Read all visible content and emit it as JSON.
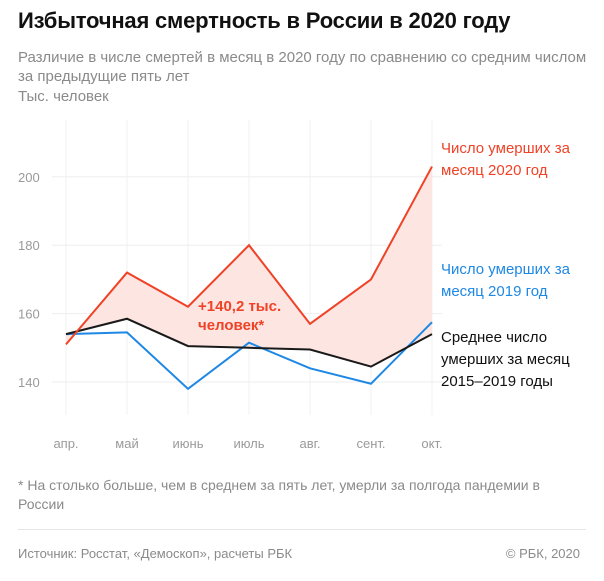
{
  "title": "Избыточная смертность в России в 2020 году",
  "subtitle": "Различие в числе смертей в месяц в 2020 году по сравнению со средним числом за предыдущие пять лет",
  "units": "Тыс. человек",
  "callout": "+140,2 тыс. человек*",
  "legend": {
    "y2020": "Число умерших за месяц 2020 год",
    "y2019": "Число умерших за месяц 2019 год",
    "avg": "Среднее число умерших за месяц 2015–2019 годы"
  },
  "footnote": "* На столько больше, чем в среднем за пять лет, умерли за полгода пандемии в России",
  "source": "Источник: Росстат, «Демоскоп», расчеты РБК",
  "copyright": "© РБК, 2020",
  "colors": {
    "y2020": "#ef4227",
    "y2019": "#1e88e5",
    "avg": "#1a1a1a",
    "fill": "#fde6e1"
  },
  "chart_data": {
    "type": "line",
    "categories": [
      "апр.",
      "май",
      "июнь",
      "июль",
      "авг.",
      "сент.",
      "окт."
    ],
    "series": [
      {
        "name": "Число умерших за месяц 2020 год",
        "values": [
          151,
          172,
          162,
          180,
          157,
          170,
          203
        ]
      },
      {
        "name": "Число умерших за месяц 2019 год",
        "values": [
          154,
          154.5,
          138,
          151.5,
          144,
          139.5,
          157.5
        ]
      },
      {
        "name": "Среднее число умерших за месяц 2015–2019 годы",
        "values": [
          154,
          158.5,
          150.5,
          150,
          149.5,
          144.5,
          154
        ]
      }
    ],
    "yticks": [
      140,
      160,
      180,
      200
    ],
    "ylim": [
      130,
      210
    ],
    "grid": true,
    "fill_between": "2020 vs average"
  }
}
